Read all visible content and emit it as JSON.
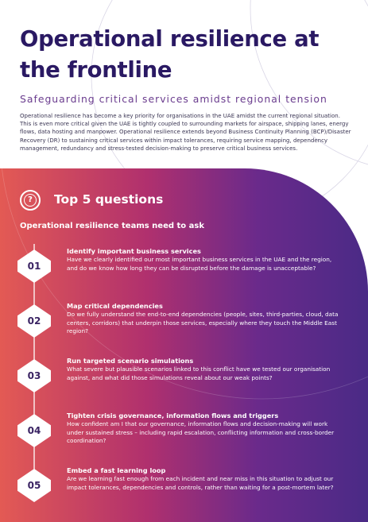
{
  "title": "Operational resilience at the frontline",
  "subtitle": "Safeguarding critical services amidst regional tension",
  "intro": "Operational resilience has become a key priority for organisations in the UAE amidst the current regional situation. This is even more critical given the UAE is tightly coupled to surrounding markets for airspace, shipping lanes, energy flows, data hosting and manpower. Operational resilience extends beyond Business Continuity Planning (BCP)/Disaster Recovery (DR) to sustaining critical services within impact tolerances, requiring service mapping, dependency management, redundancy and stress-tested decision-making to preserve critical business services.",
  "panel": {
    "heading": "Top 5 questions",
    "icon": "question-circle-icon",
    "subheading": "Operational resilience teams need to ask"
  },
  "questions": [
    {
      "number": "01",
      "title": "Identify important business services",
      "text": "Have we clearly identified our most important business services in the UAE and the region, and do we know how long they can be disrupted before the damage is unacceptable?"
    },
    {
      "number": "02",
      "title": "Map critical dependencies",
      "text": "Do we fully understand the end-to-end dependencies (people, sites, third-parties, cloud, data centers, corridors) that underpin those services, especially where they touch the Middle East region?"
    },
    {
      "number": "03",
      "title": "Run targeted scenario simulations",
      "text": "What severe but plausible scenarios linked to this conflict have we tested our organisation against, and what did those simulations reveal about our weak points?"
    },
    {
      "number": "04",
      "title": "Tighten crisis governance, information flows and triggers",
      "text": "How confident am I that our governance, information flows and decision-making will work under sustained stress – including rapid escalation, conflicting information and cross-border coordination?"
    },
    {
      "number": "05",
      "title": "Embed a fast learning loop",
      "text": "Are we learning fast enough from each incident and near miss in this situation to adjust our impact tolerances, dependencies and controls, rather than waiting for a post-mortem later?"
    }
  ],
  "colors": {
    "title": "#2a1963",
    "subtitle": "#6a3c8e",
    "panel_start": "#e35a54",
    "panel_end": "#4a2a86"
  }
}
